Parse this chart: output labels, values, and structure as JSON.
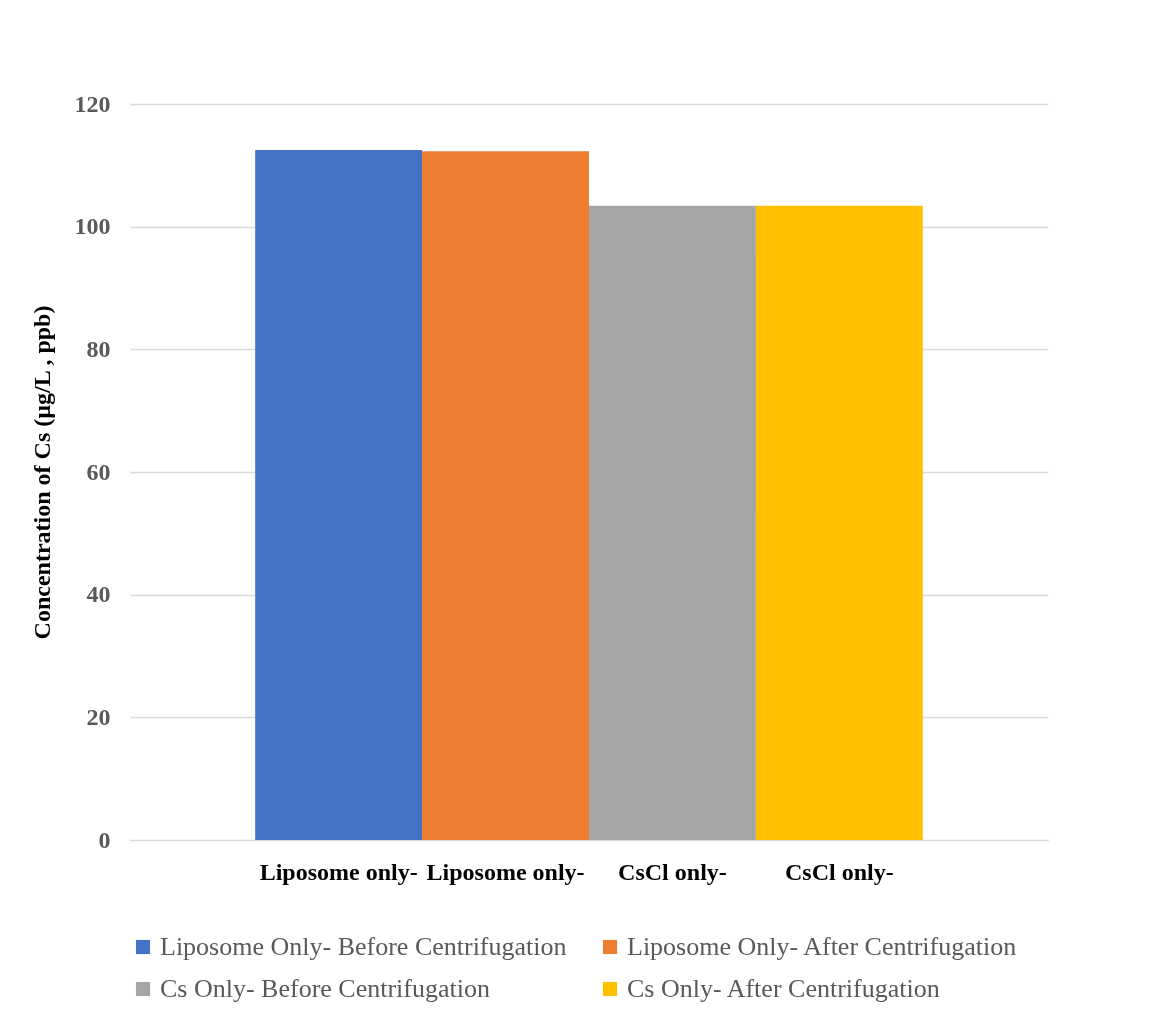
{
  "chart_data": {
    "type": "bar",
    "ylabel": "Concentration of Cs (µg/L , ppb)",
    "categories": [
      "Liposome only-",
      "Liposome only-",
      "CsCl only-",
      "CsCl only-"
    ],
    "series": [
      {
        "name": "Liposome Only- Before Centrifugation",
        "color": "#4472c4",
        "values": [
          112.5,
          null,
          null,
          null
        ]
      },
      {
        "name": "Liposome Only- After Centrifugation",
        "color": "#ed7d31",
        "values": [
          null,
          112.3,
          null,
          null
        ]
      },
      {
        "name": "Cs Only- Before Centrifugation",
        "color": "#a5a5a5",
        "values": [
          null,
          null,
          103.4,
          null
        ]
      },
      {
        "name": "Cs Only- After Centrifugation",
        "color": "#ffc000",
        "values": [
          null,
          null,
          null,
          103.4
        ]
      }
    ],
    "ylim": [
      0,
      120
    ],
    "yticks": [
      0,
      20,
      40,
      60,
      80,
      100,
      120
    ],
    "grid": "y",
    "legend": "bottom"
  }
}
